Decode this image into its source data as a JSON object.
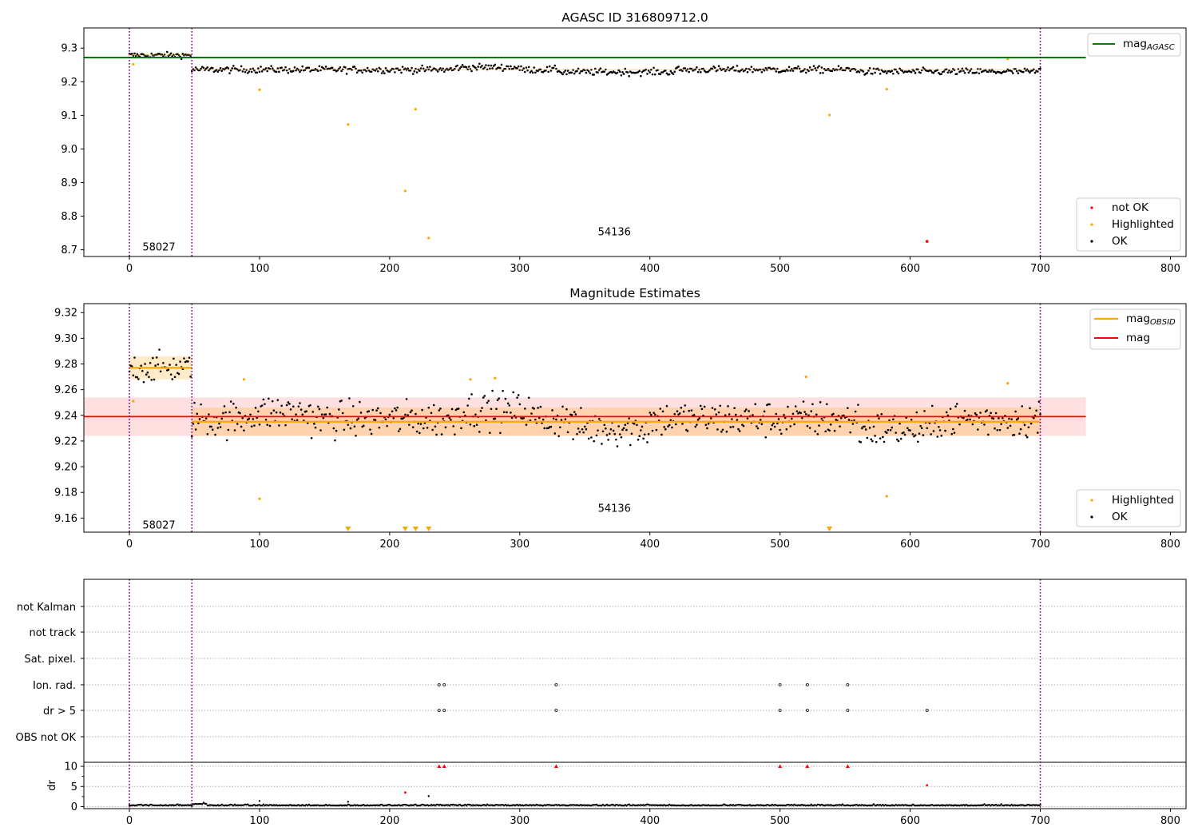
{
  "chart_data": [
    {
      "type": "scatter",
      "title": "AGASC ID 316809712.0",
      "xlim": [
        -35,
        812
      ],
      "ylim": [
        8.68,
        9.36
      ],
      "xticks": [
        0,
        100,
        200,
        300,
        400,
        500,
        600,
        700,
        800
      ],
      "yticks": [
        8.7,
        8.8,
        8.9,
        9.0,
        9.1,
        9.2,
        9.3
      ],
      "ytick_labels": [
        "8.7",
        "8.8",
        "8.9",
        "9.0",
        "9.1",
        "9.2",
        "9.3"
      ],
      "obsid_boundaries": [
        0,
        48,
        700
      ],
      "annotations": [
        {
          "text": "58027",
          "x": 10,
          "y": 8.71
        },
        {
          "text": "54136",
          "x": 360,
          "y": 8.755
        }
      ],
      "hline": {
        "name": "mag",
        "sub": "AGASC",
        "y": 9.272,
        "color": "#008000",
        "x0": -35,
        "x1": 735
      },
      "obsid_means": [
        {
          "x0": 0,
          "x1": 48,
          "y": 9.279
        },
        {
          "x0": 48,
          "x1": 700,
          "y": 9.236
        }
      ],
      "highlighted": [
        {
          "x": 3,
          "y": 9.252
        },
        {
          "x": 100,
          "y": 9.176
        },
        {
          "x": 168,
          "y": 9.073
        },
        {
          "x": 212,
          "y": 8.875
        },
        {
          "x": 220,
          "y": 9.118
        },
        {
          "x": 230,
          "y": 8.735
        },
        {
          "x": 538,
          "y": 9.101
        },
        {
          "x": 582,
          "y": 9.178
        },
        {
          "x": 675,
          "y": 9.268
        }
      ],
      "not_ok": [
        {
          "x": 613,
          "y": 8.725
        }
      ],
      "legend_lines": [
        "mag"
      ],
      "legend_points": [
        "not OK",
        "Highlighted",
        "OK"
      ],
      "colors": {
        "ok": "#000000",
        "highlighted": "#ffa500",
        "not_ok": "#ff0000",
        "bound": "#800080"
      }
    },
    {
      "type": "scatter",
      "title": "Magnitude Estimates",
      "xlim": [
        -35,
        812
      ],
      "ylim": [
        9.149,
        9.327
      ],
      "xticks": [
        0,
        100,
        200,
        300,
        400,
        500,
        600,
        700,
        800
      ],
      "yticks": [
        9.16,
        9.18,
        9.2,
        9.22,
        9.24,
        9.26,
        9.28,
        9.3,
        9.32
      ],
      "ytick_labels": [
        "9.16",
        "9.18",
        "9.20",
        "9.22",
        "9.24",
        "9.26",
        "9.28",
        "9.30",
        "9.32"
      ],
      "obsid_boundaries": [
        0,
        48,
        700
      ],
      "annotations": [
        {
          "text": "58027",
          "x": 10,
          "y": 9.155
        },
        {
          "text": "54136",
          "x": 360,
          "y": 9.168
        }
      ],
      "mag_line": {
        "name": "mag",
        "y": 9.239,
        "band": [
          9.224,
          9.254
        ],
        "x0": -35,
        "x1": 735,
        "color": "#ff0000"
      },
      "obsid_mag": [
        {
          "x0": 0,
          "x1": 48,
          "y": 9.277,
          "band": [
            9.268,
            9.286
          ]
        },
        {
          "x0": 48,
          "x1": 700,
          "y": 9.235,
          "band": [
            9.224,
            9.246
          ]
        }
      ],
      "highlighted": [
        {
          "x": 3,
          "y": 9.251
        },
        {
          "x": 88,
          "y": 9.268
        },
        {
          "x": 100,
          "y": 9.175
        },
        {
          "x": 262,
          "y": 9.268
        },
        {
          "x": 281,
          "y": 9.269
        },
        {
          "x": 520,
          "y": 9.27
        },
        {
          "x": 582,
          "y": 9.177
        },
        {
          "x": 675,
          "y": 9.265
        }
      ],
      "below_range_markers": [
        168,
        212,
        220,
        230,
        538
      ],
      "legend_lines": [
        "mag",
        "mag"
      ],
      "legend_line_subs": [
        "OBSID",
        ""
      ],
      "legend_points": [
        "Highlighted",
        "OK"
      ]
    },
    {
      "type": "scatter",
      "title": "",
      "xlim": [
        -35,
        812
      ],
      "xticks": [
        0,
        100,
        200,
        300,
        400,
        500,
        600,
        700,
        800
      ],
      "obsid_boundaries": [
        0,
        48,
        700
      ],
      "flag_labels": [
        "not Kalman",
        "not track",
        "Sat. pixel.",
        "Ion. rad.",
        "dr > 5",
        "OBS not OK"
      ],
      "flags": {
        "Ion. rad.": [
          238,
          242,
          328,
          500,
          521,
          552
        ],
        "dr > 5": [
          238,
          242,
          328,
          500,
          521,
          552,
          613
        ]
      },
      "dr_ylabel": "dr",
      "dr_ylim": [
        -0.5,
        11
      ],
      "dr_yticks": [
        0,
        5,
        10
      ],
      "dr_ytick_labels": [
        "0",
        "5",
        "10"
      ],
      "dr_capped": [
        238,
        242,
        328,
        500,
        521,
        552
      ],
      "dr_red": [
        {
          "x": 212,
          "y": 3.5
        },
        {
          "x": 613,
          "y": 5.3
        }
      ],
      "dr_black_extra": [
        {
          "x": 100,
          "y": 1.4
        },
        {
          "x": 230,
          "y": 2.6
        },
        {
          "x": 168,
          "y": 1.2
        }
      ]
    }
  ]
}
